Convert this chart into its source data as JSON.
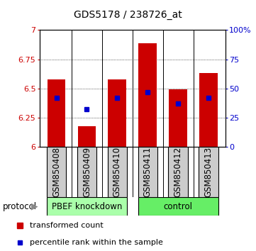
{
  "title": "GDS5178 / 238726_at",
  "samples": [
    "GSM850408",
    "GSM850409",
    "GSM850410",
    "GSM850411",
    "GSM850412",
    "GSM850413"
  ],
  "bar_tops": [
    6.575,
    6.175,
    6.575,
    6.885,
    6.495,
    6.635
  ],
  "bar_bottom": 6.0,
  "blue_vals": [
    6.42,
    6.32,
    6.42,
    6.47,
    6.37,
    6.42
  ],
  "ylim": [
    6.0,
    7.0
  ],
  "yticks": [
    6.0,
    6.25,
    6.5,
    6.75,
    7.0
  ],
  "ytick_labels": [
    "6",
    "6.25",
    "6.5",
    "6.75",
    "7"
  ],
  "right_ytick_labels": [
    "0",
    "25",
    "50",
    "75",
    "100%"
  ],
  "bar_color": "#cc0000",
  "blue_color": "#0000cc",
  "group1_label": "PBEF knockdown",
  "group2_label": "control",
  "group1_color": "#aaffaa",
  "group2_color": "#66ee66",
  "group1_indices": [
    0,
    1,
    2
  ],
  "group2_indices": [
    3,
    4,
    5
  ],
  "protocol_label": "protocol",
  "legend_red_label": "transformed count",
  "legend_blue_label": "percentile rank within the sample",
  "bar_width": 0.6,
  "left_ylabel_color": "#cc0000",
  "right_ylabel_color": "#0000cc",
  "sample_box_color": "#cccccc",
  "title_fontsize": 10,
  "tick_fontsize": 8,
  "label_fontsize": 8.5,
  "legend_fontsize": 8
}
